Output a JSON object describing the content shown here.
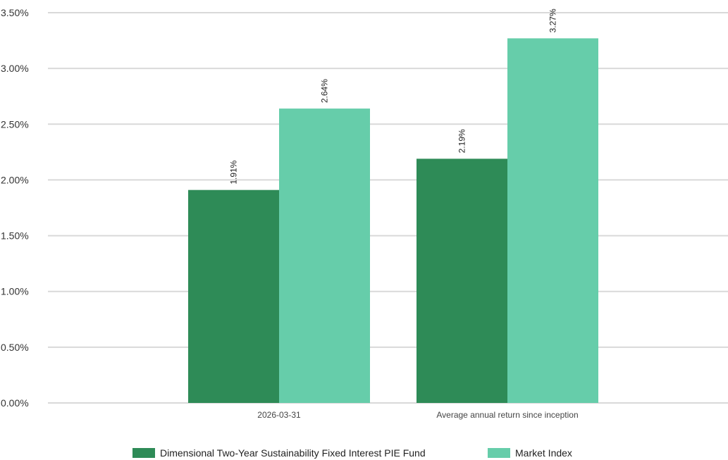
{
  "chart_data": {
    "type": "bar",
    "title": "",
    "xlabel": "",
    "ylabel": "",
    "categories": [
      "2026-03-31",
      "Average annual return since inception"
    ],
    "series": [
      {
        "name": "Dimensional Two-Year Sustainability Fixed Interest PIE Fund",
        "values": [
          1.91,
          2.19
        ],
        "labels": [
          "1.91%",
          "2.19%"
        ],
        "color": "#2e8b57"
      },
      {
        "name": "Market Index",
        "values": [
          2.64,
          3.27
        ],
        "labels": [
          "2.64%",
          "3.27%"
        ],
        "color": "#66cdaa"
      }
    ],
    "ylim": [
      0,
      3.5
    ],
    "yticks": [
      0,
      0.5,
      1.0,
      1.5,
      2.0,
      2.5,
      3.0,
      3.5
    ],
    "ytick_labels": [
      "0.00%",
      "0.50%",
      "1.00%",
      "1.50%",
      "2.00%",
      "2.50%",
      "3.00%",
      "3.50%"
    ],
    "grid": true,
    "legend_position": "bottom-center",
    "data_labels_rotated": true
  }
}
